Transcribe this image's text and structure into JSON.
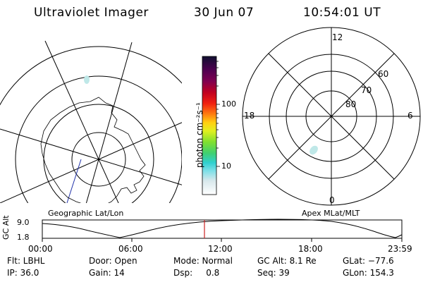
{
  "header": {
    "instrument": "Ultraviolet Imager",
    "date": "30 Jun 07",
    "time": "10:54:01 UT"
  },
  "colorbar": {
    "unit_label": "photon cm⁻²s⁻¹",
    "tick_labels": [
      "100",
      "10"
    ]
  },
  "geo_panel": {
    "label": "Geographic Lat/Lon"
  },
  "apex_panel": {
    "label": "Apex MLat/MLT",
    "mlt_labels": {
      "top": "12",
      "left": "18",
      "right": "6",
      "bottom": "0"
    },
    "mlat_labels": [
      "60",
      "70",
      "80"
    ]
  },
  "timeline": {
    "axis_label": "GC Alt",
    "y_ticks": [
      "9.0",
      "1.8"
    ],
    "x_ticks": [
      "00:00",
      "06:00",
      "12:00",
      "18:00",
      "23:59"
    ]
  },
  "status": {
    "filter": "Flt: LBHL",
    "ip": "IP: 36.0",
    "door": "Door: Open",
    "gain": "Gain: 14",
    "mode": "Mode: Normal",
    "dsp": "Dsp:     0.8",
    "gc_alt": "GC Alt: 8.1 Re",
    "seq": "Seq: 39",
    "glat": "GLat: −77.6",
    "glon": "GLon: 154.3"
  },
  "colors": {
    "background": "#ffffff",
    "line": "#000000",
    "cursor": "#cc2222",
    "aurora_patch": "#bfe8e8",
    "track": "#2233aa"
  }
}
